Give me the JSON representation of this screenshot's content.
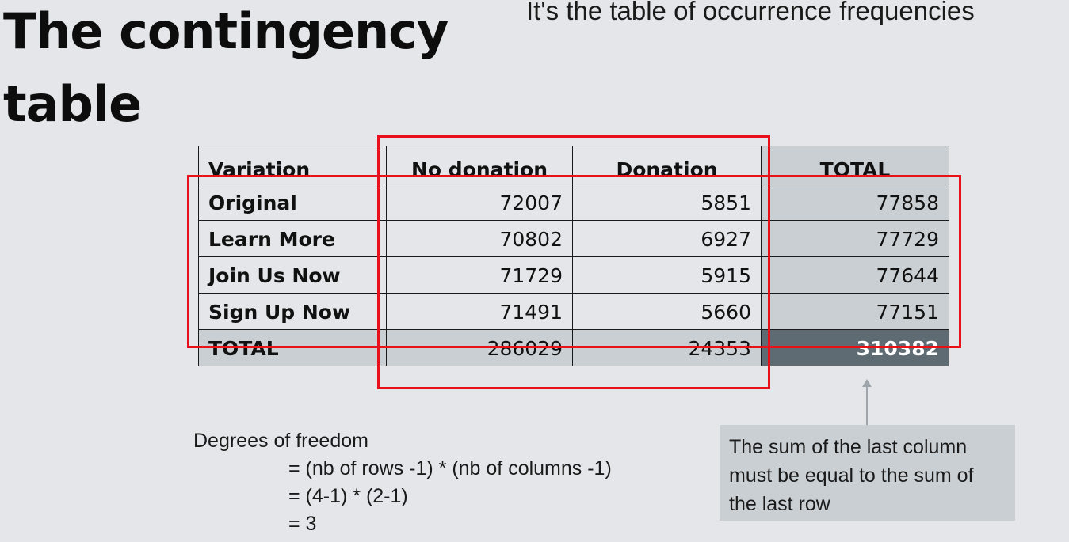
{
  "title": "The contingency table",
  "subtitle": "It's the table of occurrence frequencies",
  "table": {
    "headers": [
      "Variation",
      "No donation",
      "Donation",
      "TOTAL"
    ],
    "rows": [
      {
        "label": "Original",
        "no_donation": "72007",
        "donation": "5851",
        "total": "77858"
      },
      {
        "label": "Learn More",
        "no_donation": "70802",
        "donation": "6927",
        "total": "77729"
      },
      {
        "label": "Join Us Now",
        "no_donation": "71729",
        "donation": "5915",
        "total": "77644"
      },
      {
        "label": "Sign Up Now",
        "no_donation": "71491",
        "donation": "5660",
        "total": "77151"
      }
    ],
    "total_row": {
      "label": "TOTAL",
      "no_donation": "286029",
      "donation": "24353",
      "total": "310382"
    }
  },
  "callout": "The sum of the last column must be equal to the sum of the last row",
  "degrees_of_freedom": {
    "label": "Degrees of freedom",
    "lines": [
      "= (nb of rows -1) * (nb of columns -1)",
      "= (4-1) * (2-1)",
      "= 3"
    ]
  },
  "colors": {
    "highlight_border": "#e8111b",
    "total_fill": "#c9cfd3",
    "grand_total_fill": "#5f6b73",
    "background": "#e4e6e9"
  }
}
